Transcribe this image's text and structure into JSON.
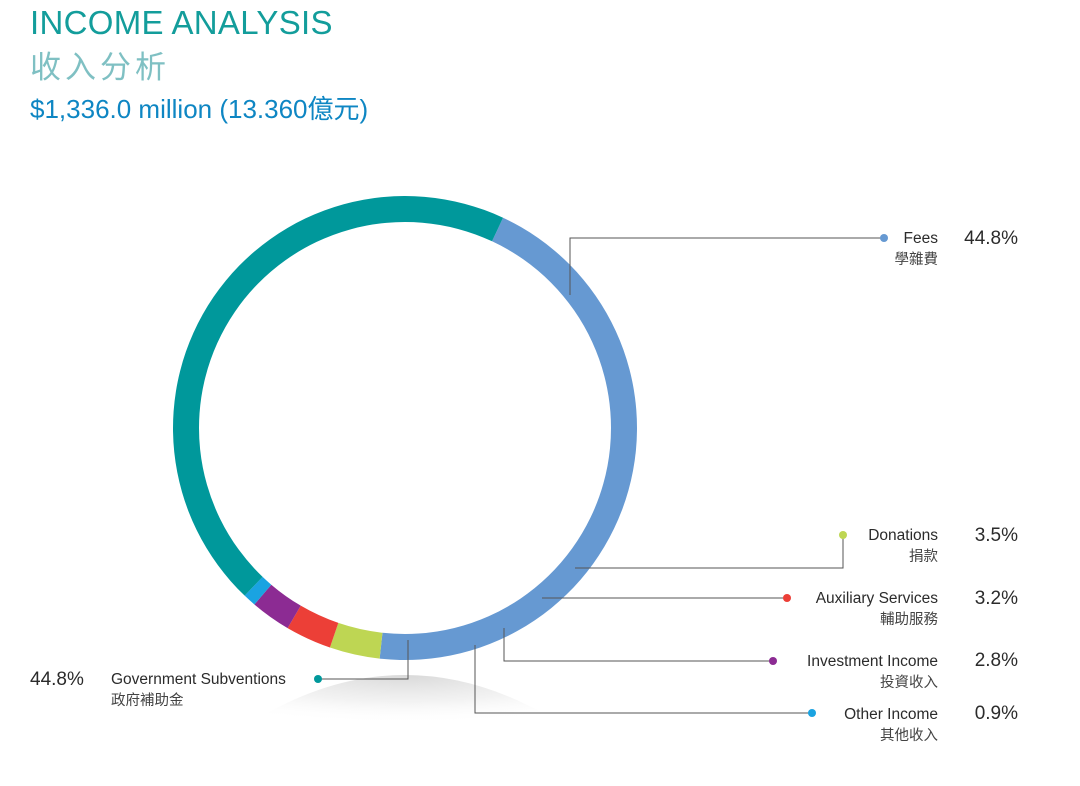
{
  "header": {
    "title_en": "INCOME ANALYSIS",
    "title_zh": "收入分析",
    "total": "$1,336.0 million (13.360億元)"
  },
  "chart_data": {
    "type": "pie",
    "donut": true,
    "legend_placement": "callouts",
    "slices": [
      {
        "name": "Fees",
        "name_zh": "學雜費",
        "value": 44.8,
        "label": "44.8%",
        "color": "#6699d2"
      },
      {
        "name": "Donations",
        "name_zh": "捐款",
        "value": 3.5,
        "label": "3.5%",
        "color": "#bed653"
      },
      {
        "name": "Auxiliary Services",
        "name_zh": "輔助服務",
        "value": 3.2,
        "label": "3.2%",
        "color": "#ec3f37"
      },
      {
        "name": "Investment Income",
        "name_zh": "投資收入",
        "value": 2.8,
        "label": "2.8%",
        "color": "#8c2b93"
      },
      {
        "name": "Other Income",
        "name_zh": "其他收入",
        "value": 0.9,
        "label": "0.9%",
        "color": "#1aa3e1"
      },
      {
        "name": "Government Subventions",
        "name_zh": "政府補助金",
        "value": 44.8,
        "label": "44.8%",
        "color": "#00989b"
      }
    ]
  }
}
